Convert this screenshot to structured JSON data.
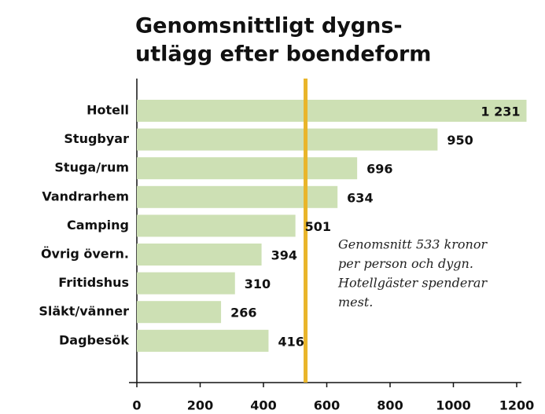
{
  "chart_data": {
    "type": "bar",
    "orientation": "horizontal",
    "title": [
      "Genomsnittligt dygns-",
      "utlägg efter boendeform"
    ],
    "categories": [
      "Hotell",
      "Stugbyar",
      "Stuga/rum",
      "Vandrarhem",
      "Camping",
      "Övrig övern.",
      "Fritidshus",
      "Släkt/vänner",
      "Dagbesök"
    ],
    "values": [
      1231,
      950,
      696,
      634,
      501,
      394,
      310,
      266,
      416
    ],
    "value_labels": [
      "1 231",
      "950",
      "696",
      "634",
      "501",
      "394",
      "310",
      "266",
      "416"
    ],
    "color": "#cde0b4",
    "xlim": [
      0,
      1200
    ],
    "xticks": [
      0,
      200,
      400,
      600,
      800,
      1000,
      1200
    ],
    "reference_line": {
      "value": 533,
      "color": "#e9b52a"
    },
    "annotation": [
      "Genomsnitt 533 kronor",
      "per person och dygn.",
      "Hotellgäster spenderar",
      "mest."
    ]
  }
}
